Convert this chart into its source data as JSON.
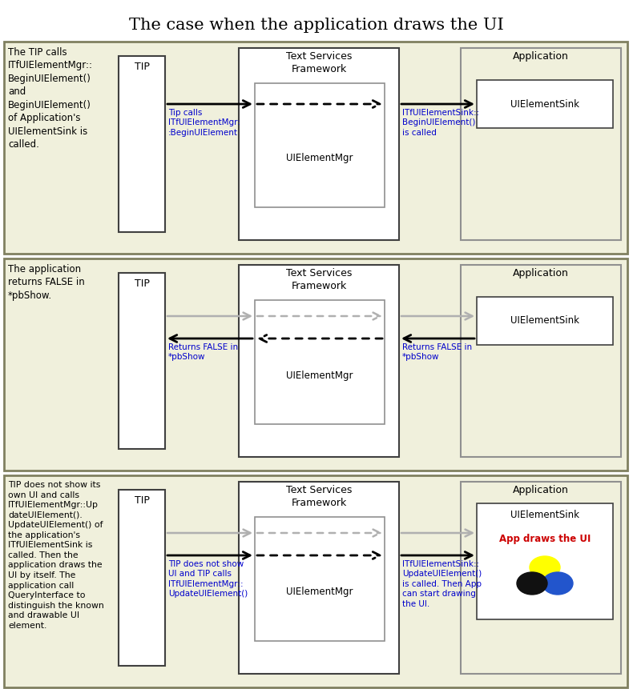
{
  "title": "The case when the application draws the UI",
  "panel1": {
    "desc": "The TIP calls\nITfUIElementMgr::\nBeginUIElement()\nand\nBeginUIElement()\nof Application's\nUIElementSink is\ncalled.",
    "tip_label": "TIP",
    "tsf_label": "Text Services\nFramework",
    "app_label": "Application",
    "inner_label": "UIElementMgr",
    "sink_label": "UIElementSink",
    "arrow1_label": "Tip calls\nITfUIElementMgr:\n:BeginUIElement",
    "arrow2_label": "ITfUIElementSink::\nBeginUIElement()\nis called"
  },
  "panel2": {
    "desc": "The application\nreturns FALSE in\n*pbShow.",
    "tip_label": "TIP",
    "tsf_label": "Text Services\nFramework",
    "app_label": "Application",
    "inner_label": "UIElementMgr",
    "sink_label": "UIElementSink",
    "arrow1_label": "Returns FALSE in\n*pbShow",
    "arrow2_label": "Returns FALSE in\n*pbShow"
  },
  "panel3": {
    "desc": "TIP does not show its\nown UI and calls\nITfUIElementMgr::Up\ndateUIElement().\nUpdateUIElement() of\nthe application's\nITfUIElementSink is\ncalled. Then the\napplication draws the\nUI by itself. The\napplication call\nQueryInterface to\ndistinguish the known\nand drawable UI\nelement.",
    "tip_label": "TIP",
    "tsf_label": "Text Services\nFramework",
    "app_label": "Application",
    "inner_label": "UIElementMgr",
    "sink_label": "UIElementSink",
    "draws_label": "App draws the UI",
    "arrow1_label": "TIP does not show\nUI and TIP calls\nITfUIElementMgr::\nUpdateUIElement()",
    "arrow2_label": "ITfUIElementSink::\nUpdateUIElement()\nis called. Then App\ncan start drawing\nthe UI."
  },
  "bg_color": "#f0f0dc",
  "panel_border_color": "#808060",
  "box_border_color": "#404040",
  "inner_box_border_color": "#909090",
  "gray_arrow_color": "#b0b0b0",
  "blue_text_color": "#0000cc",
  "black_text_color": "#000000",
  "red_text_color": "#cc0000"
}
